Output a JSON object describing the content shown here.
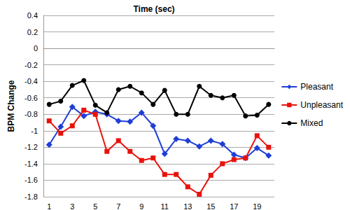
{
  "chart_data": {
    "type": "line",
    "title": "Time (sec)",
    "y_label": "BPM Change",
    "categories": [
      "1",
      null,
      "3",
      null,
      "5",
      null,
      "7",
      null,
      "9",
      null,
      "11",
      null,
      "13",
      null,
      "15",
      null,
      "17",
      null,
      "19",
      null
    ],
    "series": [
      {
        "name": "Pleasant",
        "color": "#1f3fd6",
        "marker": "diamond",
        "values": [
          -1.17,
          -0.95,
          -0.71,
          -0.82,
          -0.77,
          -0.8,
          -0.88,
          -0.89,
          -0.78,
          -0.94,
          -1.28,
          -1.1,
          -1.12,
          -1.19,
          -1.12,
          -1.16,
          -1.29,
          -1.33,
          -1.21,
          -1.3
        ]
      },
      {
        "name": "Unpleasant",
        "color": "#e8120c",
        "marker": "square",
        "values": [
          -0.88,
          -1.03,
          -0.94,
          -0.75,
          -0.8,
          -1.25,
          -1.12,
          -1.25,
          -1.36,
          -1.33,
          -1.53,
          -1.53,
          -1.68,
          -1.77,
          -1.54,
          -1.4,
          -1.35,
          -1.33,
          -1.06,
          -1.2
        ]
      },
      {
        "name": "Mixed",
        "color": "#000000",
        "marker": "circle",
        "values": [
          -0.68,
          -0.64,
          -0.45,
          -0.39,
          -0.69,
          -0.78,
          -0.5,
          -0.46,
          -0.54,
          -0.68,
          -0.51,
          -0.8,
          -0.8,
          -0.46,
          -0.57,
          -0.6,
          -0.57,
          -0.82,
          -0.81,
          -0.68
        ]
      }
    ],
    "ylim": [
      -1.8,
      0.4
    ],
    "yticks": [
      -1.8,
      -1.6,
      -1.4,
      -1.2,
      -1,
      -0.8,
      -0.6,
      -0.4,
      -0.2,
      0,
      0.2,
      0.4
    ],
    "grid": true,
    "legend": "right"
  }
}
